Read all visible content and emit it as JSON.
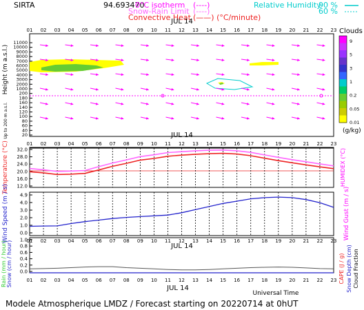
{
  "header": {
    "site": "SIRTA",
    "value": "94.693470",
    "legend_iso": "0°C isotherm",
    "legend_iso_marks": "(----)",
    "legend_snow": "Snow-Rain Limit",
    "legend_snow_marks": "(----)",
    "legend_conv": "Convective Heat",
    "legend_conv_marks": "(——)  (°C/minute)",
    "legend_rh": "Relative Humidity",
    "rh_90": "90 %",
    "rh_60": "60 %"
  },
  "date_label": "JUL 14",
  "hours": [
    "01",
    "02",
    "03",
    "04",
    "05",
    "06",
    "07",
    "08",
    "09",
    "10",
    "11",
    "12",
    "13",
    "14",
    "15",
    "16",
    "17",
    "18",
    "19",
    "20",
    "21",
    "22",
    "23"
  ],
  "hours_bottom": [
    "01",
    "02",
    "03",
    "04",
    "05",
    "06",
    "07",
    "08",
    "09",
    "10",
    "11",
    "12",
    "13",
    "14",
    "15",
    "16",
    "17",
    "18",
    "19",
    "20",
    "21",
    "22",
    "23"
  ],
  "panel1": {
    "ylabel": "Height  (m a.s.l.)",
    "ylabel2": "Up to 200 m a.s.l.",
    "ticks": [
      "11000",
      "10000",
      "9000",
      "8000",
      "7000",
      "6000",
      "5000",
      "4000",
      "3000",
      "2000",
      "1000",
      "200",
      "180",
      "160",
      "140",
      "120",
      "100",
      "80",
      "60",
      "40",
      "20"
    ],
    "clouds_title": "Clouds",
    "clouds_unit": "(g/kg)",
    "clouds_ticks": [
      "9",
      "5",
      "3",
      "1",
      "0.2",
      "0.05",
      "0.01"
    ],
    "clouds_colors": [
      "#ff00ff",
      "#cc33ff",
      "#9933ff",
      "#6633cc",
      "#3333cc",
      "#3366ff",
      "#00cccc",
      "#00cc66",
      "#66cc33",
      "#99cc00",
      "#cccc00",
      "#ffff00"
    ]
  },
  "panel2": {
    "ylabel_left": "Temperature (°C)",
    "ylabel_right": "HUMIDEX (°C)",
    "ticks": [
      "32.0",
      "28.0",
      "24.0",
      "20.0",
      "16.0",
      "12.0"
    ]
  },
  "panel3": {
    "ylabel_left": "Wind Speed (m / s)",
    "ylabel_right": "Wind Gust (m / s)",
    "ticks": [
      "4.9",
      "4.0",
      "3.0",
      "2.0",
      "1.0",
      "0.0"
    ]
  },
  "panel4": {
    "ylabel_left1": "Rain (mm / hour)",
    "ylabel_left2": "Snow (cm / hour)",
    "ylabel_right1": "CAPE (J / g)",
    "ylabel_right2": "Snow Depth (cm)",
    "ylabel_right3": "Cloud Fraction",
    "ticks": [
      "1.0",
      "0.8",
      "0.6",
      "0.4",
      "0.2",
      "0.0"
    ],
    "xlabel": "Universal Time"
  },
  "footer": "Modele Atmospherique LMDZ / Forecast starting on 20220714 at 0hUT",
  "chart_data": [
    {
      "type": "line",
      "title": "",
      "x": [
        1,
        2,
        3,
        4,
        5,
        6,
        7,
        8,
        9,
        10,
        11,
        12,
        13,
        14,
        15,
        16,
        17,
        18,
        19,
        20,
        21,
        22,
        23
      ],
      "xlabel": "",
      "ylabel": "Temperature (°C)",
      "ylim": [
        12,
        32
      ],
      "series": [
        {
          "name": "",
          "color": "#ee2222",
          "values": [
            19.8,
            19.2,
            18.3,
            18.5,
            18.9,
            20.8,
            22.8,
            24.4,
            26.2,
            27.1,
            28.3,
            28.9,
            29.4,
            29.7,
            29.9,
            29.5,
            28.6,
            27.2,
            25.9,
            24.7,
            23.6,
            22.5,
            21.5
          ]
        },
        {
          "name": "",
          "color": "#ff66ff",
          "values": [
            21.6,
            20.9,
            20.0,
            20.2,
            20.5,
            22.6,
            24.6,
            26.3,
            28.1,
            29.1,
            30.3,
            30.8,
            31.3,
            31.6,
            31.7,
            31.3,
            30.4,
            29.0,
            27.7,
            26.4,
            25.3,
            24.1,
            23.0
          ]
        }
      ]
    },
    {
      "type": "line",
      "title": "",
      "x": [
        1,
        2,
        3,
        4,
        5,
        6,
        7,
        8,
        9,
        10,
        11,
        12,
        13,
        14,
        15,
        16,
        17,
        18,
        19,
        20,
        21,
        22,
        23
      ],
      "xlabel": "",
      "ylabel": "Wind Speed (m / s)",
      "ylim": [
        0,
        4.9
      ],
      "series": [
        {
          "name": "",
          "color": "#2222cc",
          "values": [
            0.85,
            0.88,
            0.9,
            1.2,
            1.45,
            1.65,
            1.85,
            2.0,
            2.1,
            2.2,
            2.3,
            2.6,
            3.0,
            3.4,
            3.8,
            4.1,
            4.4,
            4.55,
            4.62,
            4.55,
            4.3,
            3.9,
            3.3
          ]
        }
      ]
    },
    {
      "type": "line",
      "title": "",
      "x": [
        1,
        2,
        3,
        4,
        5,
        6,
        7,
        8,
        9,
        10,
        11,
        12,
        13,
        14,
        15,
        16,
        17,
        18,
        19,
        20,
        21,
        22,
        23
      ],
      "xlabel": "Universal Time",
      "ylabel": "Rain (mm / hour)",
      "ylim": [
        0,
        1.0
      ],
      "series": [
        {
          "name": "",
          "color": "#555555",
          "values": [
            0.08,
            0.09,
            0.1,
            0.12,
            0.14,
            0.15,
            0.15,
            0.12,
            0.1,
            0.08,
            0.06,
            0.05,
            0.05,
            0.06,
            0.08,
            0.1,
            0.12,
            0.13,
            0.14,
            0.13,
            0.11,
            0.09,
            0.08
          ]
        }
      ]
    }
  ]
}
